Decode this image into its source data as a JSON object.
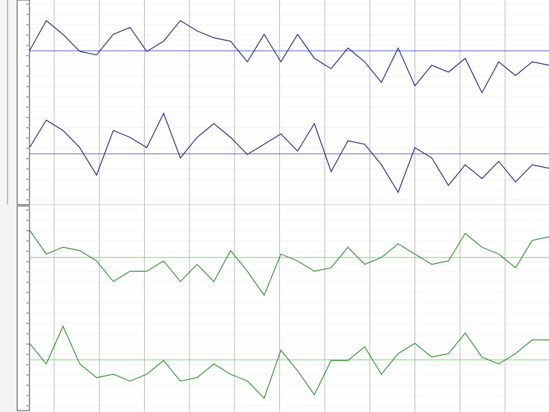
{
  "tracks": [
    {
      "color": "#1c1c78",
      "centerline": "#4a5ac6",
      "values": [
        0,
        0.88,
        0.48,
        -0.02,
        -0.12,
        0.48,
        0.68,
        -0.02,
        0.28,
        0.88,
        0.58,
        0.38,
        0.28,
        -0.32,
        0.48,
        -0.32,
        0.48,
        -0.22,
        -0.52,
        0.08,
        -0.32,
        -0.92,
        0.08,
        -1.02,
        -0.42,
        -0.62,
        -0.22,
        -1.22,
        -0.32,
        -0.72,
        -0.32,
        -0.42
      ]
    },
    {
      "color": "#1c1c78",
      "centerline": "#4a5ac6",
      "values": [
        0.18,
        0.98,
        0.68,
        0.18,
        -0.62,
        0.68,
        0.48,
        0.18,
        1.18,
        -0.12,
        0.48,
        0.88,
        0.48,
        -0.02,
        0.28,
        0.58,
        0.08,
        0.88,
        -0.52,
        0.38,
        0.28,
        -0.32,
        -1.12,
        0.18,
        -0.12,
        -0.92,
        -0.32,
        -0.72,
        -0.22,
        -0.82,
        -0.32,
        -0.42
      ]
    },
    {
      "color": "#2a8a2a",
      "centerline": "#66d466",
      "values": [
        0.8,
        0.1,
        0.3,
        0.2,
        -0.1,
        -0.7,
        -0.4,
        -0.4,
        -0.1,
        -0.7,
        -0.2,
        -0.7,
        0.2,
        -0.4,
        -1.1,
        0.1,
        -0.1,
        -0.4,
        -0.3,
        0.3,
        -0.2,
        0,
        0.4,
        0.1,
        -0.2,
        -0.1,
        0.7,
        0.3,
        0.1,
        -0.3,
        0.5,
        0.6
      ]
    },
    {
      "color": "#2a8a2a",
      "centerline": "#66d466",
      "values": [
        0.48,
        -0.12,
        0.98,
        -0.12,
        -0.52,
        -0.42,
        -0.62,
        -0.42,
        -0.02,
        -0.62,
        -0.52,
        -0.12,
        -0.42,
        -0.62,
        -1.12,
        0.28,
        -0.32,
        -1.02,
        -0.02,
        -0.02,
        0.38,
        -0.42,
        0.18,
        0.48,
        0.08,
        0.18,
        0.78,
        0.08,
        -0.12,
        0.18,
        0.58,
        0.58
      ]
    }
  ]
}
